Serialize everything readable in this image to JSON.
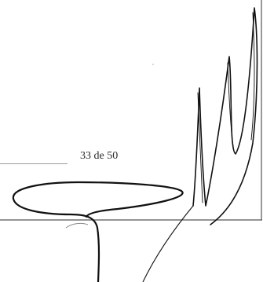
{
  "page": {
    "page_number": "33 de 50"
  },
  "colors": {
    "ink": "#111111",
    "rule": "#9a9a9a",
    "text": "#2a2a2a",
    "paper": "#ffffff"
  }
}
